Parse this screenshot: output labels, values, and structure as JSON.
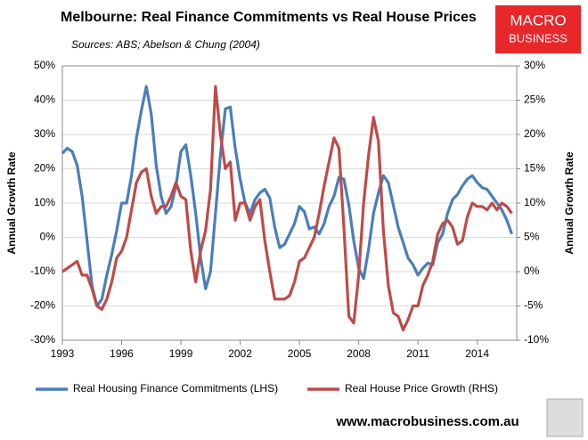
{
  "chart_data": {
    "type": "line",
    "title": "Melbourne: Real Finance Commitments vs Real House Prices",
    "subtitle": "Sources: ABS; Abelson & Chung (2004)",
    "ylabel": "Annual Growth Rate",
    "y2label": "Annual Growth Rate",
    "x": [
      1993,
      1993.25,
      1993.5,
      1993.75,
      1994,
      1994.25,
      1994.5,
      1994.75,
      1995,
      1995.25,
      1995.5,
      1995.75,
      1996,
      1996.25,
      1996.5,
      1996.75,
      1997,
      1997.25,
      1997.5,
      1997.75,
      1998,
      1998.25,
      1998.5,
      1998.75,
      1999,
      1999.25,
      1999.5,
      1999.75,
      2000,
      2000.25,
      2000.5,
      2000.75,
      2001,
      2001.25,
      2001.5,
      2001.75,
      2002,
      2002.25,
      2002.5,
      2002.75,
      2003,
      2003.25,
      2003.5,
      2003.75,
      2004,
      2004.25,
      2004.5,
      2004.75,
      2005,
      2005.25,
      2005.5,
      2005.75,
      2006,
      2006.25,
      2006.5,
      2006.75,
      2007,
      2007.25,
      2007.5,
      2007.75,
      2008,
      2008.25,
      2008.5,
      2008.75,
      2009,
      2009.25,
      2009.5,
      2009.75,
      2010,
      2010.25,
      2010.5,
      2010.75,
      2011,
      2011.25,
      2011.5,
      2011.75,
      2012,
      2012.25,
      2012.5,
      2012.75,
      2013,
      2013.25,
      2013.5,
      2013.75,
      2014,
      2014.25,
      2014.5,
      2014.75,
      2015,
      2015.25,
      2015.5,
      2015.75
    ],
    "series": [
      {
        "name": "Real Housing Finance Commitments (LHS)",
        "color": "#4a7ebb",
        "axis": "y",
        "values": [
          24.5,
          26,
          25,
          21,
          12,
          -1,
          -14,
          -20,
          -18,
          -11,
          -5,
          2,
          10,
          10,
          18,
          29,
          37,
          44,
          36,
          21,
          12,
          7,
          9,
          15,
          25,
          27,
          18,
          7,
          -6,
          -15,
          -10,
          7,
          24,
          37.5,
          38,
          26,
          17,
          10,
          7,
          11,
          13,
          14,
          11.5,
          3,
          -3,
          -2,
          1,
          4,
          9,
          7.5,
          2.5,
          3,
          1,
          4,
          9,
          12,
          17.5,
          17,
          9.5,
          -1,
          -9,
          -12,
          -3.5,
          7,
          13,
          18,
          16,
          9.5,
          3,
          -1.5,
          -6,
          -8,
          -11,
          -9,
          -7.5,
          -8,
          -1.5,
          1,
          7,
          11,
          12.5,
          15,
          17,
          18,
          16,
          14.5,
          14,
          12,
          10,
          8,
          5,
          1
        ]
      },
      {
        "name": "Real House Price Growth (RHS)",
        "color": "#be4b48",
        "axis": "y2",
        "values": [
          0,
          0.5,
          1,
          1.5,
          -0.5,
          -0.5,
          -2.5,
          -5,
          -5.5,
          -4,
          -1.5,
          2,
          3,
          5,
          9,
          13,
          14.5,
          15,
          11,
          8.5,
          9.5,
          9.5,
          11,
          13,
          11,
          10.5,
          3,
          -1.5,
          3,
          6,
          12,
          27,
          20,
          15,
          16,
          7.5,
          10,
          10,
          7.5,
          9.5,
          10.5,
          4.5,
          0,
          -4,
          -4,
          -4,
          -3.5,
          -1.5,
          1.5,
          2,
          3.5,
          5,
          8.5,
          12.5,
          16,
          19.5,
          18,
          6.5,
          -6.5,
          -7.5,
          -0.5,
          10,
          17,
          22.5,
          19,
          6,
          -2,
          -6,
          -6.5,
          -8.5,
          -7,
          -5,
          -5,
          -2,
          -0.5,
          1.5,
          5.5,
          7,
          7.5,
          6.5,
          4,
          4.5,
          8,
          10,
          9.5,
          9.5,
          9,
          10,
          9,
          10,
          9.5,
          8.5
        ]
      }
    ],
    "xlim": [
      1993,
      2016
    ],
    "xticks": [
      1993,
      1996,
      1999,
      2002,
      2005,
      2008,
      2011,
      2014
    ],
    "ylim": [
      -30,
      50
    ],
    "yticks": [
      {
        "value": -30,
        "label": "-30%"
      },
      {
        "value": -20,
        "label": "-20%"
      },
      {
        "value": -10,
        "label": "-10%"
      },
      {
        "value": 0,
        "label": "0%"
      },
      {
        "value": 10,
        "label": "10%"
      },
      {
        "value": 20,
        "label": "20%"
      },
      {
        "value": 30,
        "label": "30%"
      },
      {
        "value": 40,
        "label": "40%"
      },
      {
        "value": 50,
        "label": "50%"
      }
    ],
    "y2lim": [
      -10,
      30
    ],
    "y2ticks": [
      {
        "value": -10,
        "label": "-10%"
      },
      {
        "value": -5,
        "label": "-5%"
      },
      {
        "value": 0,
        "label": "0%"
      },
      {
        "value": 5,
        "label": "5%"
      },
      {
        "value": 10,
        "label": "10%"
      },
      {
        "value": 15,
        "label": "15%"
      },
      {
        "value": 20,
        "label": "20%"
      },
      {
        "value": 25,
        "label": "25%"
      },
      {
        "value": 30,
        "label": "30%"
      }
    ],
    "grid": true,
    "legend": "bottom"
  },
  "logo": [
    "MACRO",
    "BUSINESS"
  ],
  "footer": "www.macrobusiness.com.au"
}
